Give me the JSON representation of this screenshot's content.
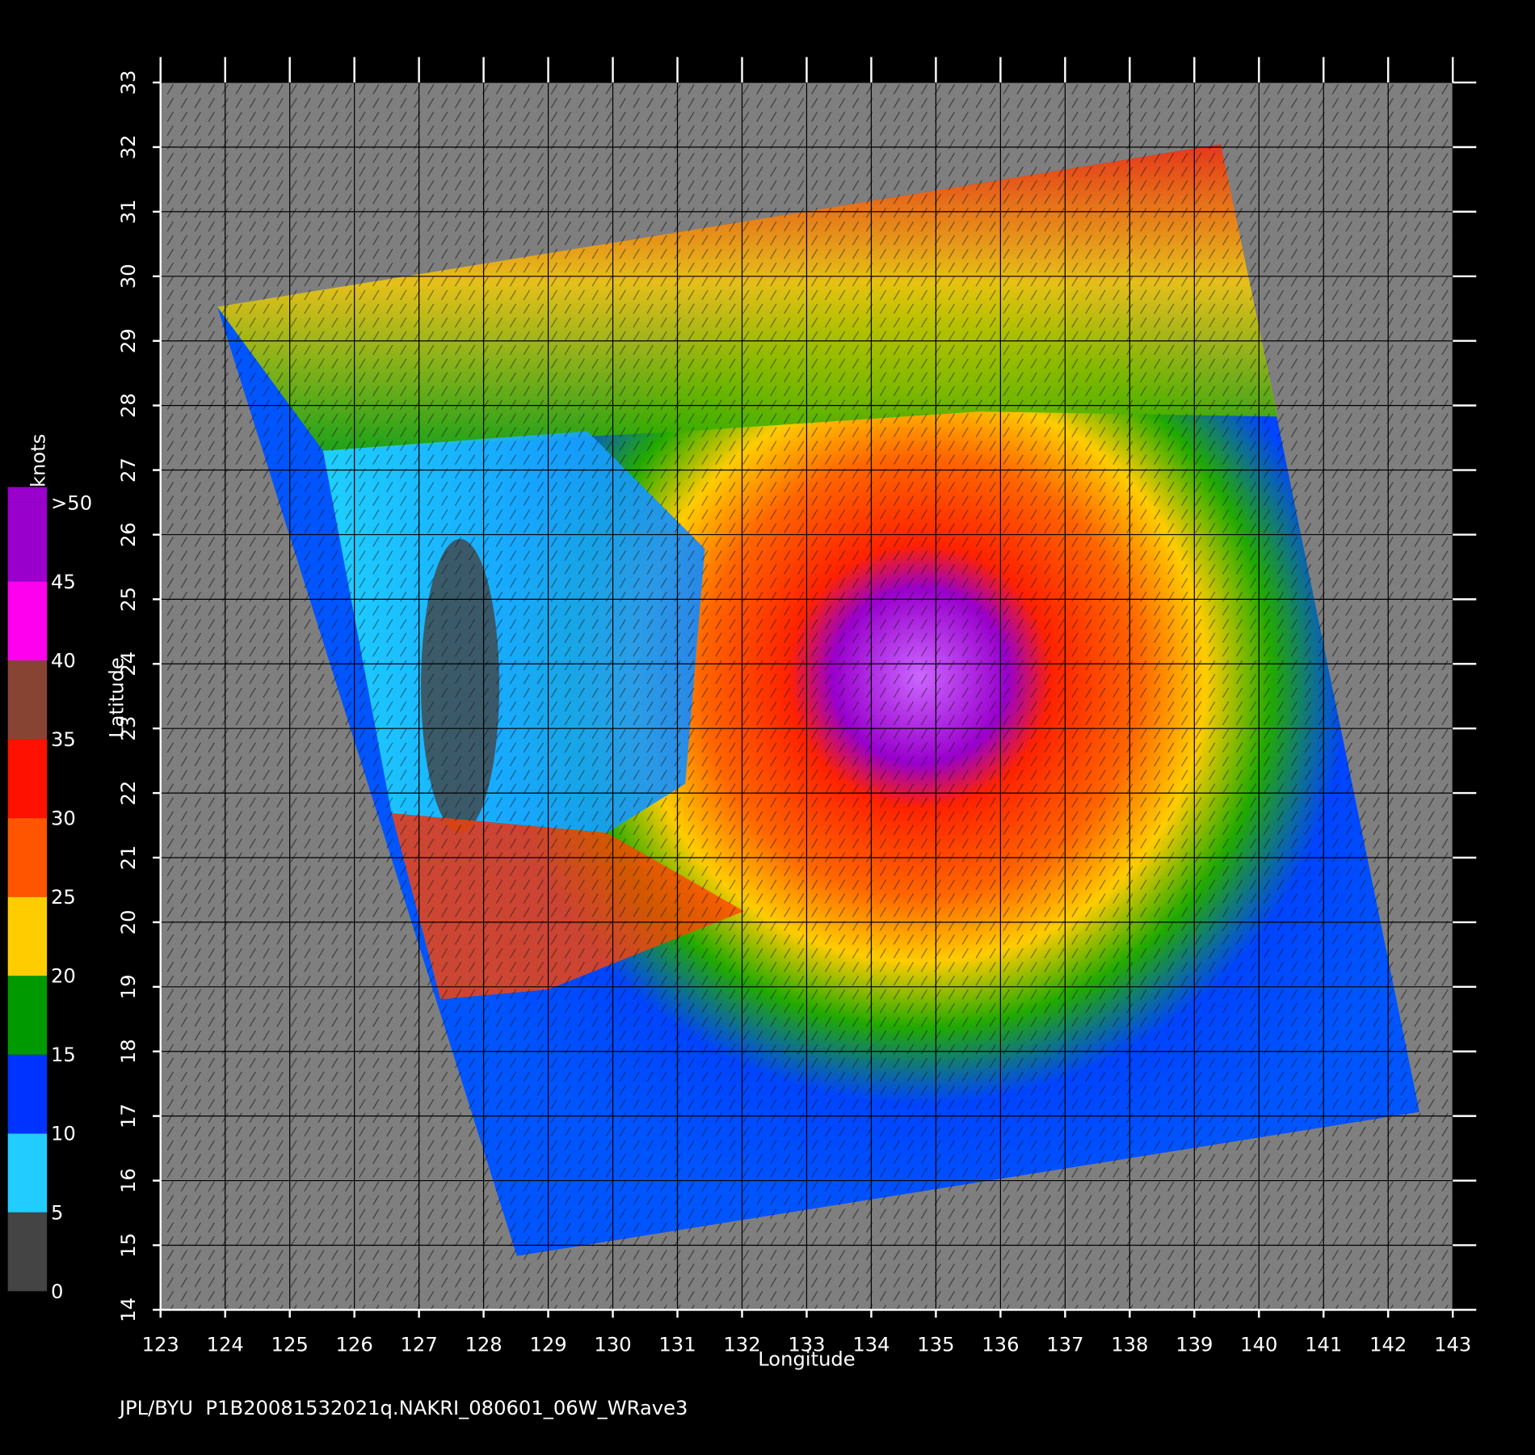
{
  "chart_data": {
    "type": "map",
    "x_label": "Longitude",
    "y_label": "Latitude",
    "xlim": [
      123,
      143
    ],
    "ylim": [
      14,
      33
    ],
    "xticks": [
      123,
      124,
      125,
      126,
      127,
      128,
      129,
      130,
      131,
      132,
      133,
      134,
      135,
      136,
      137,
      138,
      139,
      140,
      141,
      142,
      143
    ],
    "yticks": [
      14,
      15,
      16,
      17,
      18,
      19,
      20,
      21,
      22,
      23,
      24,
      25,
      26,
      27,
      28,
      29,
      30,
      31,
      32,
      33
    ],
    "grid": true,
    "colorbar": {
      "label": "knots",
      "ticks": [
        0,
        5,
        10,
        15,
        20,
        25,
        30,
        35,
        40,
        {
          "value": 45,
          "label": "45"
        },
        {
          "value": 50,
          "label": ">50"
        }
      ],
      "colors": [
        "#444444",
        "#22ccff",
        "#0033ff",
        "#009900",
        "#ffcc00",
        "#ff5500",
        "#ff1100",
        "#884433",
        "#ff00ee",
        "#9900cc"
      ]
    },
    "footer": "JPL/BYU  P1B20081532021q.NAKRI_080601_06W_WRave3"
  }
}
